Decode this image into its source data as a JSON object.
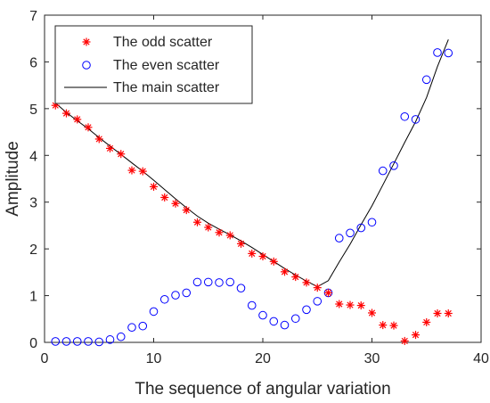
{
  "chart_data": {
    "type": "scatter",
    "xlabel": "The sequence of angular variation",
    "ylabel": "Amplitude",
    "xlim": [
      0,
      40
    ],
    "ylim": [
      0,
      7
    ],
    "xticks": [
      0,
      10,
      20,
      30,
      40
    ],
    "yticks": [
      0,
      1,
      2,
      3,
      4,
      5,
      6,
      7
    ],
    "grid": false,
    "legend_position": "top-left",
    "series": [
      {
        "name": "The odd scatter",
        "marker": "asterisk",
        "color": "#ff0000",
        "x": [
          1,
          2,
          3,
          4,
          5,
          6,
          7,
          8,
          9,
          10,
          11,
          12,
          13,
          14,
          15,
          16,
          17,
          18,
          19,
          20,
          21,
          22,
          23,
          24,
          25,
          26,
          27,
          28,
          29,
          30,
          31,
          32,
          33,
          34,
          35,
          36,
          37
        ],
        "y": [
          5.07,
          4.9,
          4.77,
          4.6,
          4.35,
          4.15,
          4.03,
          3.68,
          3.66,
          3.33,
          3.1,
          2.97,
          2.83,
          2.57,
          2.46,
          2.35,
          2.29,
          2.11,
          1.9,
          1.84,
          1.73,
          1.51,
          1.4,
          1.28,
          1.17,
          1.06,
          0.82,
          0.8,
          0.79,
          0.63,
          0.37,
          0.36,
          0.03,
          0.16,
          0.43,
          0.62,
          0.62
        ]
      },
      {
        "name": "The even scatter",
        "marker": "circle",
        "color": "#0000ff",
        "x": [
          1,
          2,
          3,
          4,
          5,
          6,
          7,
          8,
          9,
          10,
          11,
          12,
          13,
          14,
          15,
          16,
          17,
          18,
          19,
          20,
          21,
          22,
          23,
          24,
          25,
          26,
          27,
          28,
          29,
          30,
          31,
          32,
          33,
          34,
          35,
          36,
          37
        ],
        "y": [
          0.02,
          0.02,
          0.02,
          0.02,
          0.01,
          0.06,
          0.12,
          0.32,
          0.35,
          0.66,
          0.92,
          1.01,
          1.06,
          1.29,
          1.29,
          1.28,
          1.29,
          1.16,
          0.79,
          0.58,
          0.45,
          0.37,
          0.51,
          0.7,
          0.88,
          1.06,
          2.23,
          2.34,
          2.45,
          2.57,
          3.67,
          3.78,
          4.83,
          4.77,
          5.62,
          6.2,
          6.19
        ]
      },
      {
        "name": "The main scatter",
        "marker": "line",
        "color": "#000000",
        "x": [
          1,
          2,
          3,
          4,
          5,
          6,
          7,
          8,
          9,
          10,
          11,
          12,
          13,
          14,
          15,
          16,
          17,
          18,
          19,
          20,
          21,
          22,
          23,
          24,
          25,
          26,
          27,
          28,
          29,
          30,
          31,
          32,
          33,
          34,
          35,
          36,
          37
        ],
        "y": [
          5.12,
          4.92,
          4.74,
          4.57,
          4.38,
          4.2,
          4.02,
          3.84,
          3.66,
          3.47,
          3.27,
          3.07,
          2.88,
          2.7,
          2.55,
          2.42,
          2.3,
          2.17,
          2.03,
          1.88,
          1.73,
          1.58,
          1.44,
          1.31,
          1.19,
          1.32,
          1.72,
          2.1,
          2.52,
          2.92,
          3.37,
          3.82,
          4.28,
          4.72,
          5.24,
          5.9,
          6.48
        ]
      }
    ]
  }
}
